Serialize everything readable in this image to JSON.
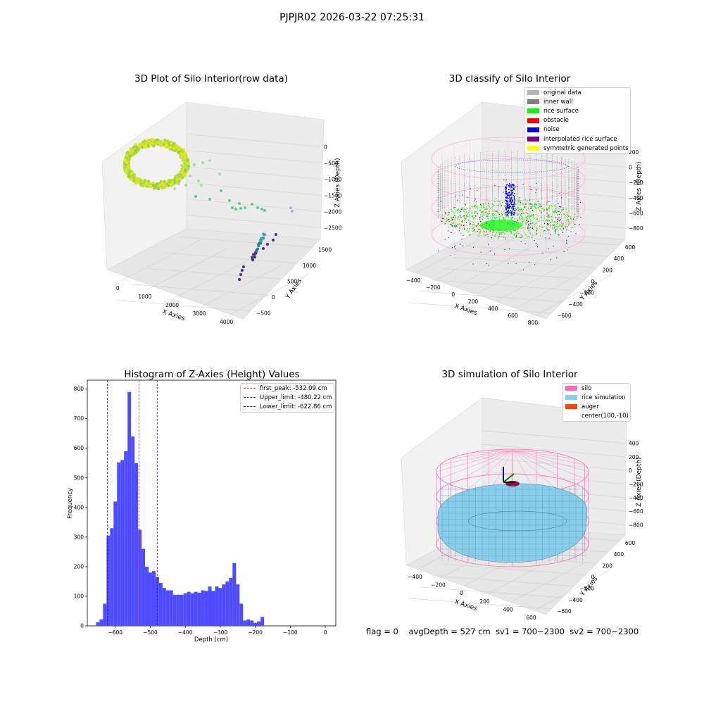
{
  "suptitle": "PJPJR02 2026-03-22 07:25:31",
  "status_text": "flag = 0    avgDepth = 527 cm  sv1 = 700~2300  sv2 = 700~2300",
  "colors": {
    "bar": "#4d4dff",
    "peak": "#e03030",
    "limit": "#2020d0",
    "silo": "#ff69b4",
    "rice": "#87ceeb",
    "auger": "#ff4500",
    "original": "#b4b4b4",
    "inner_wall": "#808080",
    "rice_surface": "#00ff00",
    "obstacle": "#ff0000",
    "noise": "#0000ff",
    "interp": "#800080",
    "symmetric": "#ffff00"
  },
  "chart_data": [
    {
      "type": "scatter",
      "title": "3D Plot of Silo Interior(row data)",
      "xlabel": "X Axies",
      "ylabel": "Y Axies",
      "zlabel": "Z Axies (Depth)",
      "x_ticks": [
        "0",
        "1000",
        "2000",
        "3000",
        "4000"
      ],
      "y_ticks": [
        "-500",
        "0",
        "500",
        "1000",
        "1500"
      ],
      "z_ticks": [
        "0",
        "-500",
        "-1000",
        "-1500",
        "-2000",
        "-2500"
      ]
    },
    {
      "type": "scatter",
      "title": "3D classify of Silo Interior",
      "xlabel": "X Axies",
      "ylabel": "Y Axies",
      "zlabel": "Z Axies (Depth)",
      "x_ticks": [
        "-400",
        "-200",
        "0",
        "200",
        "400",
        "600",
        "800"
      ],
      "y_ticks": [
        "-600",
        "-400",
        "-200",
        "0",
        "200",
        "400",
        "600"
      ],
      "z_ticks": [
        "200",
        "0",
        "-200",
        "-400",
        "-600",
        "-800"
      ],
      "legend": [
        "original data",
        "inner wall",
        "rice surface",
        "obstacle",
        "noise",
        "interpolated rice surface",
        "symmetric generated points"
      ]
    },
    {
      "type": "bar",
      "title": "Histogram of Z-Axies (Height) Values",
      "xlabel": "Depth (cm)",
      "ylabel": "Frequency",
      "xlim": [
        -680,
        30
      ],
      "ylim": [
        0,
        830
      ],
      "x_ticks": [
        -600,
        -500,
        -400,
        -300,
        -200,
        -100,
        0
      ],
      "y_ticks": [
        0,
        100,
        200,
        300,
        400,
        500,
        600,
        700,
        800
      ],
      "bin_start": -655,
      "bin_width": 10,
      "values": [
        12,
        22,
        75,
        305,
        330,
        420,
        552,
        560,
        590,
        790,
        640,
        550,
        325,
        260,
        200,
        180,
        185,
        165,
        145,
        128,
        120,
        120,
        105,
        105,
        105,
        110,
        115,
        110,
        115,
        112,
        120,
        118,
        133,
        118,
        133,
        128,
        140,
        150,
        162,
        212,
        140,
        75,
        18,
        22,
        18,
        10,
        15,
        30
      ],
      "lines": [
        {
          "label": "first_peak: -532.09 cm",
          "value": -532.09,
          "color": "#e03030"
        },
        {
          "label": "Upper_limit: -480.22 cm",
          "value": -480.22,
          "color": "#2020d0"
        },
        {
          "label": "Lower_limit: -622.86 cm",
          "value": -622.86,
          "color": "#2020d0"
        }
      ]
    },
    {
      "type": "scatter",
      "title": "3D simulation of Silo Interior",
      "xlabel": "X Axies",
      "ylabel": "Y Axies",
      "zlabel": "Z Axies (Depth)",
      "x_ticks": [
        "-400",
        "-200",
        "0",
        "200",
        "400",
        "600"
      ],
      "y_ticks": [
        "-600",
        "-400",
        "-200",
        "0",
        "200",
        "400",
        "600"
      ],
      "z_ticks": [
        "400",
        "200",
        "0",
        "-200",
        "-400",
        "-600",
        "-800"
      ],
      "legend": [
        "silo",
        "rice simulation",
        "auger",
        "center(100,-10)"
      ]
    }
  ]
}
